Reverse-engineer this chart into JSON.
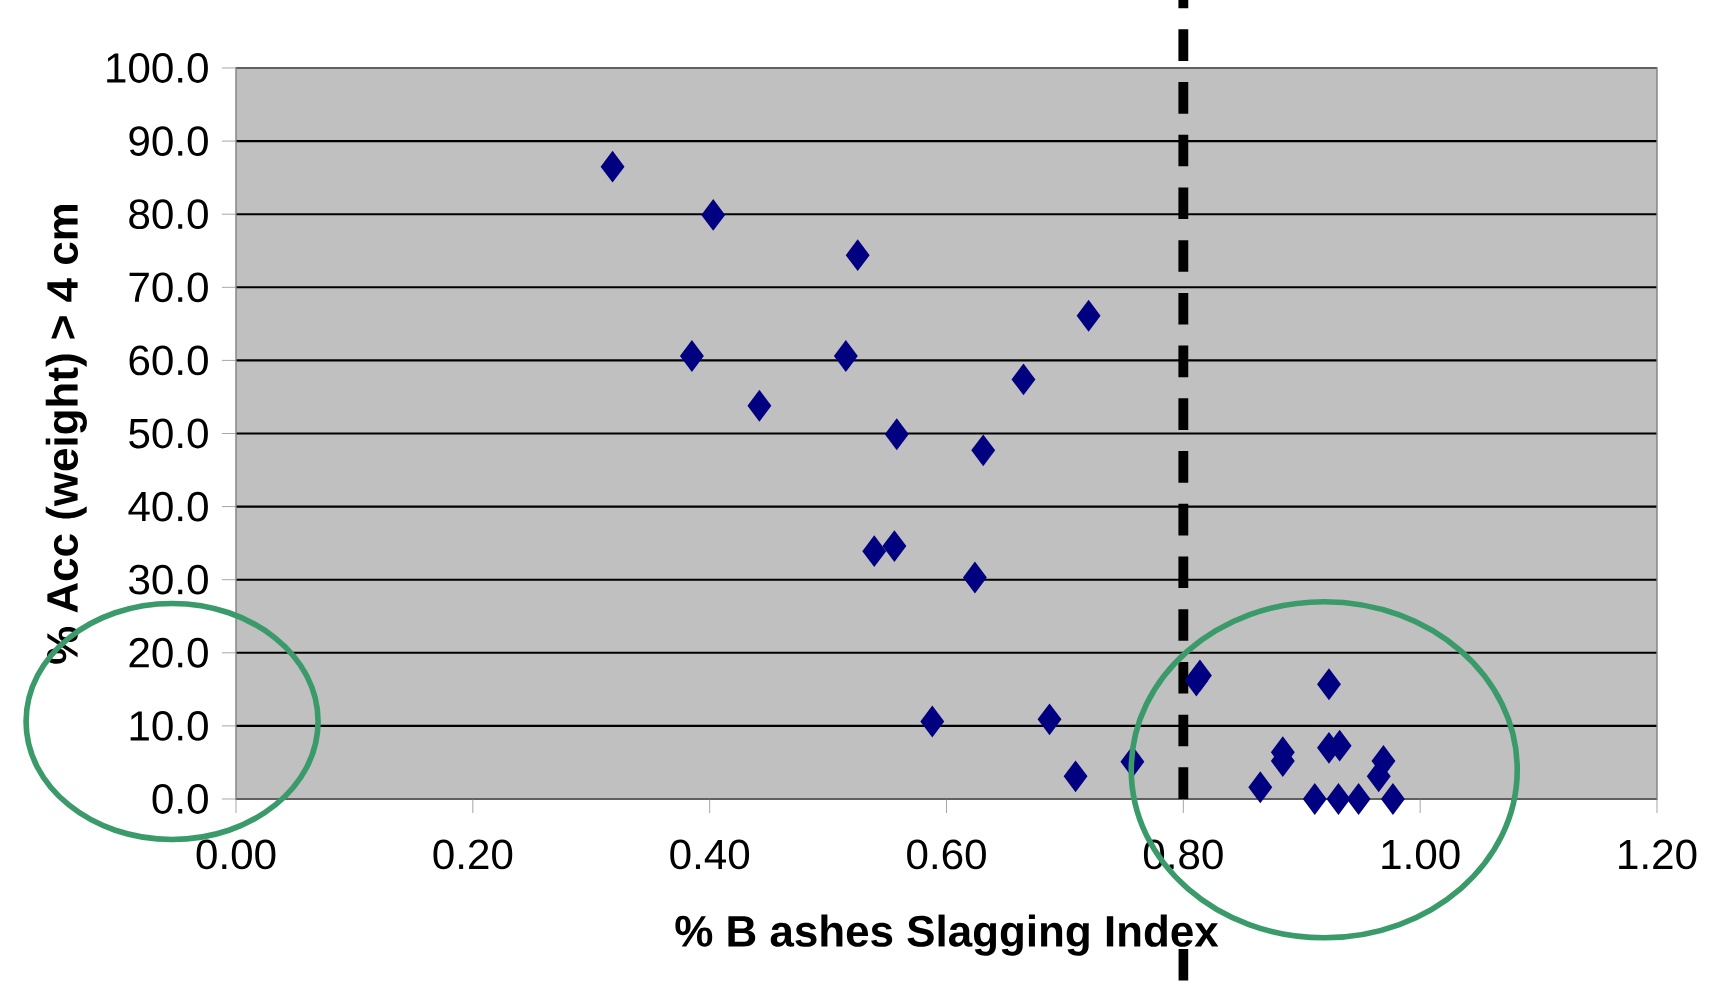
{
  "chart_data": {
    "type": "scatter",
    "xlabel": "% B ashes Slagging Index",
    "ylabel": "% Acc (weight) > 4 cm",
    "x": [
      0.318,
      0.403,
      0.525,
      0.385,
      0.515,
      0.72,
      0.442,
      0.558,
      0.665,
      0.631,
      0.539,
      0.556,
      0.624,
      0.588,
      0.687,
      0.709,
      0.757,
      0.811,
      0.814,
      0.923,
      0.865,
      0.884,
      0.884,
      0.923,
      0.932,
      0.911,
      0.931,
      0.948,
      0.977,
      0.969,
      0.965
    ],
    "values": [
      86.5,
      79.9,
      74.4,
      60.6,
      60.6,
      66.1,
      53.8,
      49.9,
      57.4,
      47.7,
      33.9,
      34.6,
      30.3,
      10.6,
      10.9,
      3.1,
      5.1,
      16.2,
      16.9,
      15.7,
      1.6,
      6.4,
      5.2,
      7.0,
      7.3,
      0,
      0,
      0,
      0,
      5.2,
      3.1
    ],
    "color": "#000080",
    "marker": "diamond",
    "grid": "y",
    "xlim": [
      0,
      1.2
    ],
    "ylim": [
      0,
      100
    ],
    "xticks": [
      {
        "value": 0,
        "label": "0.00"
      },
      {
        "value": 0.2,
        "label": "0.20"
      },
      {
        "value": 0.4,
        "label": "0.40"
      },
      {
        "value": 0.6,
        "label": "0.60"
      },
      {
        "value": 0.8,
        "label": "0.80"
      },
      {
        "value": 1.0,
        "label": "1.00"
      },
      {
        "value": 1.2,
        "label": "1.20"
      }
    ],
    "yticks": [
      {
        "value": 0,
        "label": "0.0"
      },
      {
        "value": 10,
        "label": "10.0"
      },
      {
        "value": 20,
        "label": "20.0"
      },
      {
        "value": 30,
        "label": "30.0"
      },
      {
        "value": 40,
        "label": "40.0"
      },
      {
        "value": 50,
        "label": "50.0"
      },
      {
        "value": 60,
        "label": "60.0"
      },
      {
        "value": 70,
        "label": "70.0"
      },
      {
        "value": 80,
        "label": "80.0"
      },
      {
        "value": 90,
        "label": "90.0"
      },
      {
        "value": 100,
        "label": "100.0"
      }
    ],
    "ref_lines": [
      {
        "axis": "x",
        "value": 0.8,
        "line_style": "dashed",
        "color": "#000000"
      }
    ]
  }
}
